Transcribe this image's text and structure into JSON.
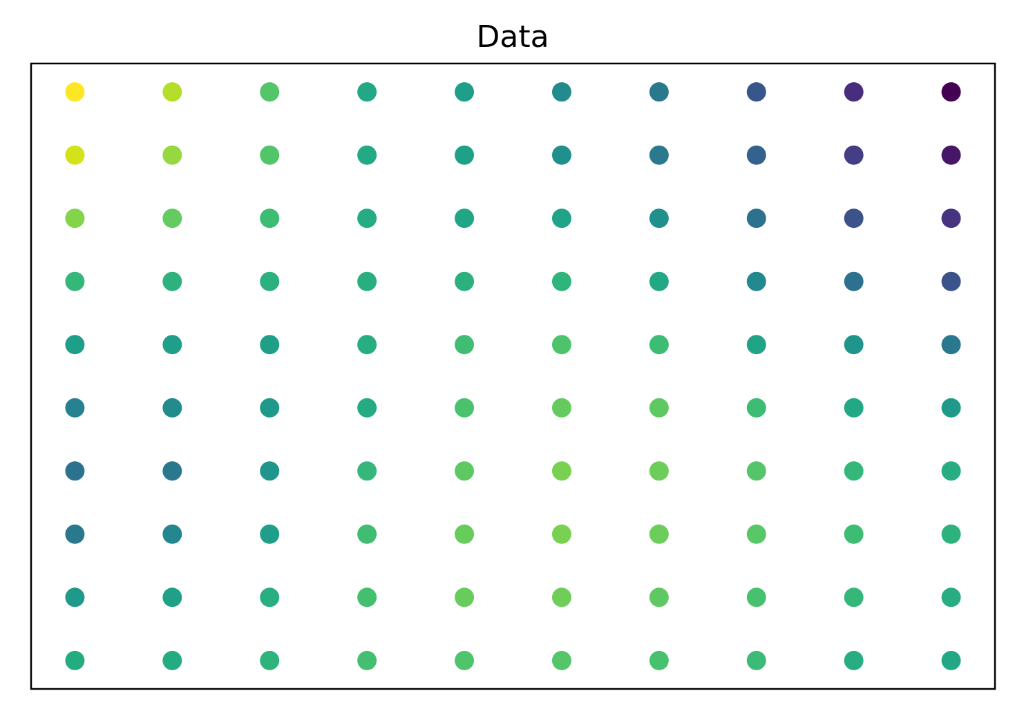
{
  "chart_data": {
    "type": "scatter",
    "title": "Data",
    "xlabel": "",
    "ylabel": "",
    "grid": false,
    "legend": "none",
    "axis_ticks": false,
    "colormap": "viridis",
    "x": [
      0,
      1,
      2,
      3,
      4,
      5,
      6,
      7,
      8,
      9
    ],
    "y": [
      9,
      8,
      7,
      6,
      5,
      4,
      3,
      2,
      1,
      0
    ],
    "xlim": [
      -0.45,
      9.45
    ],
    "ylim": [
      -0.45,
      9.45
    ],
    "point_colors": [
      [
        "#fde725",
        "#b5de2b",
        "#54c568",
        "#22a884",
        "#1f9e89",
        "#228c8d",
        "#2a788e",
        "#39568c",
        "#472d7b",
        "#440154"
      ],
      [
        "#d2e21b",
        "#95d840",
        "#52c569",
        "#23a983",
        "#1fa188",
        "#21908d",
        "#2a798e",
        "#33628d",
        "#433e85",
        "#481668"
      ],
      [
        "#84d44b",
        "#63cb5f",
        "#3dbc74",
        "#25ac82",
        "#21a685",
        "#20a386",
        "#21908d",
        "#2c728e",
        "#3b528b",
        "#463480"
      ],
      [
        "#35b779",
        "#2db27d",
        "#2bb07f",
        "#29af7f",
        "#2cb17e",
        "#2fb47c",
        "#22a884",
        "#23898e",
        "#2d718e",
        "#3b528b"
      ],
      [
        "#1f9e89",
        "#1f9e89",
        "#1f9f88",
        "#26ad81",
        "#40bd72",
        "#4ec36b",
        "#3dbc74",
        "#20a486",
        "#1f958b",
        "#2a788e"
      ],
      [
        "#26828e",
        "#228c8d",
        "#1f998a",
        "#25ab82",
        "#4ac16d",
        "#65cb5e",
        "#5ec962",
        "#3dbc74",
        "#22a884",
        "#1f9a8a"
      ],
      [
        "#2c728e",
        "#2a788e",
        "#1f958b",
        "#35b779",
        "#5ec962",
        "#7ad151",
        "#6ccd5a",
        "#54c568",
        "#35b779",
        "#27ad81"
      ],
      [
        "#2a788e",
        "#24868e",
        "#1f9e89",
        "#40bd72",
        "#67cc5c",
        "#7ad151",
        "#6ccd5a",
        "#58c765",
        "#3dbc74",
        "#2db27d"
      ],
      [
        "#1f9a8a",
        "#1fa188",
        "#28ae80",
        "#44bf70",
        "#67cc5c",
        "#6ece58",
        "#5ec962",
        "#48c16e",
        "#35b779",
        "#27ad81"
      ],
      [
        "#25ab82",
        "#25ab82",
        "#2eb37c",
        "#44bf70",
        "#50c46a",
        "#54c568",
        "#48c16e",
        "#3bbb75",
        "#27ad81",
        "#22a884"
      ]
    ]
  }
}
